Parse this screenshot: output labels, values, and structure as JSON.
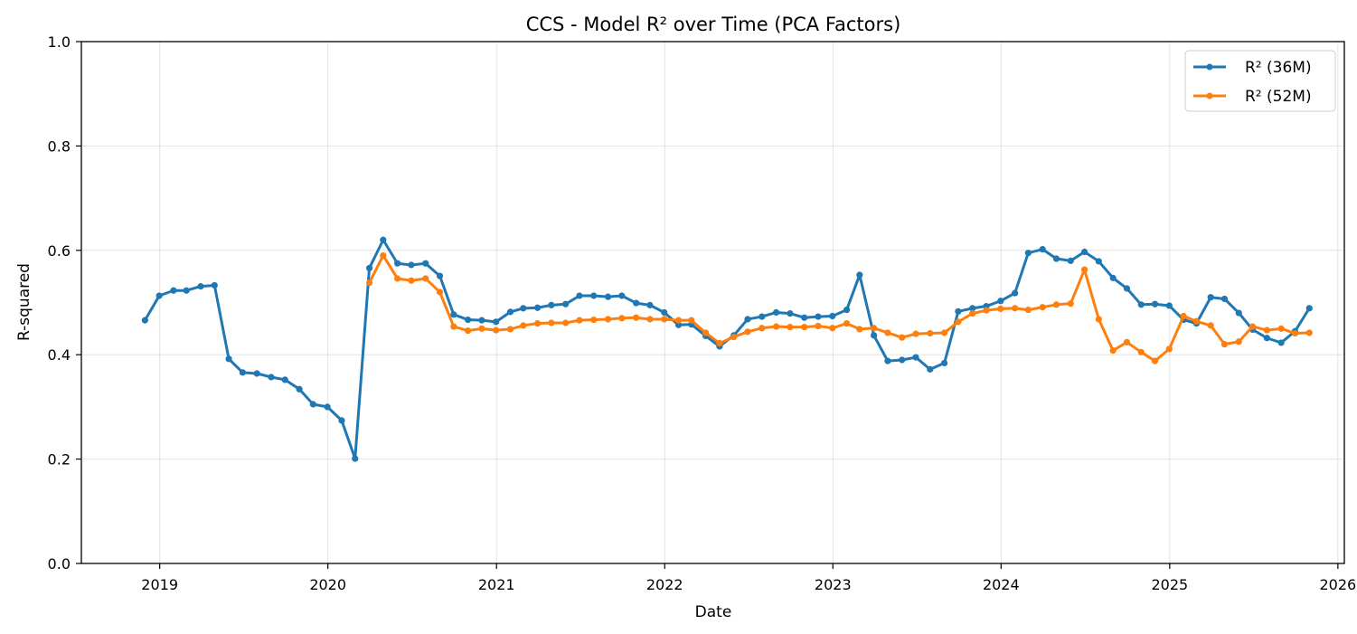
{
  "chart_data": {
    "type": "line",
    "title": "CCS - Model R² over Time (PCA Factors)",
    "xlabel": "Date",
    "ylabel": "R-squared",
    "ylim": [
      0.0,
      1.0
    ],
    "xlim": [
      "2018-07-15",
      "2026-01-15"
    ],
    "x_ticks": [
      "2019",
      "2020",
      "2021",
      "2022",
      "2023",
      "2024",
      "2025",
      "2026"
    ],
    "y_ticks": [
      "0.0",
      "0.2",
      "0.4",
      "0.6",
      "0.8",
      "1.0"
    ],
    "grid": true,
    "legend_position": "top-right",
    "series": [
      {
        "name": "R² (36M)",
        "color": "#1f77b4",
        "points": [
          [
            "2018-11-30",
            0.466
          ],
          [
            "2018-12-31",
            0.513
          ],
          [
            "2019-01-31",
            0.523
          ],
          [
            "2019-02-28",
            0.523
          ],
          [
            "2019-03-31",
            0.531
          ],
          [
            "2019-04-30",
            0.533
          ],
          [
            "2019-05-31",
            0.392
          ],
          [
            "2019-06-30",
            0.366
          ],
          [
            "2019-07-31",
            0.364
          ],
          [
            "2019-08-31",
            0.357
          ],
          [
            "2019-09-30",
            0.352
          ],
          [
            "2019-10-31",
            0.334
          ],
          [
            "2019-11-30",
            0.305
          ],
          [
            "2019-12-31",
            0.3
          ],
          [
            "2020-01-31",
            0.274
          ],
          [
            "2020-02-29",
            0.201
          ],
          [
            "2020-03-31",
            0.566
          ],
          [
            "2020-04-30",
            0.62
          ],
          [
            "2020-05-31",
            0.575
          ],
          [
            "2020-06-30",
            0.572
          ],
          [
            "2020-07-31",
            0.575
          ],
          [
            "2020-08-31",
            0.551
          ],
          [
            "2020-09-30",
            0.477
          ],
          [
            "2020-10-31",
            0.467
          ],
          [
            "2020-11-30",
            0.466
          ],
          [
            "2020-12-31",
            0.463
          ],
          [
            "2021-01-31",
            0.482
          ],
          [
            "2021-02-28",
            0.489
          ],
          [
            "2021-03-31",
            0.49
          ],
          [
            "2021-04-30",
            0.495
          ],
          [
            "2021-05-31",
            0.497
          ],
          [
            "2021-06-30",
            0.513
          ],
          [
            "2021-07-31",
            0.513
          ],
          [
            "2021-08-31",
            0.511
          ],
          [
            "2021-09-30",
            0.513
          ],
          [
            "2021-10-31",
            0.499
          ],
          [
            "2021-11-30",
            0.495
          ],
          [
            "2021-12-31",
            0.481
          ],
          [
            "2022-01-31",
            0.457
          ],
          [
            "2022-02-28",
            0.458
          ],
          [
            "2022-03-31",
            0.436
          ],
          [
            "2022-04-30",
            0.416
          ],
          [
            "2022-05-31",
            0.437
          ],
          [
            "2022-06-30",
            0.468
          ],
          [
            "2022-07-31",
            0.473
          ],
          [
            "2022-08-31",
            0.481
          ],
          [
            "2022-09-30",
            0.479
          ],
          [
            "2022-10-31",
            0.471
          ],
          [
            "2022-11-30",
            0.473
          ],
          [
            "2022-12-31",
            0.474
          ],
          [
            "2023-01-31",
            0.486
          ],
          [
            "2023-02-28",
            0.553
          ],
          [
            "2023-03-31",
            0.437
          ],
          [
            "2023-04-30",
            0.388
          ],
          [
            "2023-05-31",
            0.39
          ],
          [
            "2023-06-30",
            0.395
          ],
          [
            "2023-07-31",
            0.372
          ],
          [
            "2023-08-31",
            0.384
          ],
          [
            "2023-09-30",
            0.483
          ],
          [
            "2023-10-31",
            0.489
          ],
          [
            "2023-11-30",
            0.493
          ],
          [
            "2023-12-31",
            0.503
          ],
          [
            "2024-01-31",
            0.518
          ],
          [
            "2024-02-29",
            0.595
          ],
          [
            "2024-03-31",
            0.602
          ],
          [
            "2024-04-30",
            0.584
          ],
          [
            "2024-05-31",
            0.58
          ],
          [
            "2024-06-30",
            0.597
          ],
          [
            "2024-07-31",
            0.579
          ],
          [
            "2024-08-31",
            0.547
          ],
          [
            "2024-09-30",
            0.527
          ],
          [
            "2024-10-31",
            0.496
          ],
          [
            "2024-11-30",
            0.497
          ],
          [
            "2024-12-31",
            0.494
          ],
          [
            "2025-01-31",
            0.467
          ],
          [
            "2025-02-28",
            0.46
          ],
          [
            "2025-03-31",
            0.51
          ],
          [
            "2025-04-30",
            0.507
          ],
          [
            "2025-05-31",
            0.48
          ],
          [
            "2025-06-30",
            0.448
          ],
          [
            "2025-07-31",
            0.432
          ],
          [
            "2025-08-31",
            0.423
          ],
          [
            "2025-09-30",
            0.445
          ],
          [
            "2025-10-31",
            0.489
          ]
        ]
      },
      {
        "name": "R² (52M)",
        "color": "#ff7f0e",
        "points": [
          [
            "2020-03-31",
            0.538
          ],
          [
            "2020-04-30",
            0.59
          ],
          [
            "2020-05-31",
            0.546
          ],
          [
            "2020-06-30",
            0.542
          ],
          [
            "2020-07-31",
            0.546
          ],
          [
            "2020-08-31",
            0.52
          ],
          [
            "2020-09-30",
            0.454
          ],
          [
            "2020-10-31",
            0.446
          ],
          [
            "2020-11-30",
            0.45
          ],
          [
            "2020-12-31",
            0.447
          ],
          [
            "2021-01-31",
            0.449
          ],
          [
            "2021-02-28",
            0.456
          ],
          [
            "2021-03-31",
            0.46
          ],
          [
            "2021-04-30",
            0.461
          ],
          [
            "2021-05-31",
            0.461
          ],
          [
            "2021-06-30",
            0.466
          ],
          [
            "2021-07-31",
            0.467
          ],
          [
            "2021-08-31",
            0.468
          ],
          [
            "2021-09-30",
            0.47
          ],
          [
            "2021-10-31",
            0.471
          ],
          [
            "2021-11-30",
            0.468
          ],
          [
            "2021-12-31",
            0.468
          ],
          [
            "2022-01-31",
            0.466
          ],
          [
            "2022-02-28",
            0.466
          ],
          [
            "2022-03-31",
            0.442
          ],
          [
            "2022-04-30",
            0.422
          ],
          [
            "2022-05-31",
            0.434
          ],
          [
            "2022-06-30",
            0.444
          ],
          [
            "2022-07-31",
            0.451
          ],
          [
            "2022-08-31",
            0.454
          ],
          [
            "2022-09-30",
            0.453
          ],
          [
            "2022-10-31",
            0.453
          ],
          [
            "2022-11-30",
            0.455
          ],
          [
            "2022-12-31",
            0.451
          ],
          [
            "2023-01-31",
            0.46
          ],
          [
            "2023-02-28",
            0.449
          ],
          [
            "2023-03-31",
            0.451
          ],
          [
            "2023-04-30",
            0.442
          ],
          [
            "2023-05-31",
            0.433
          ],
          [
            "2023-06-30",
            0.44
          ],
          [
            "2023-07-31",
            0.441
          ],
          [
            "2023-08-31",
            0.442
          ],
          [
            "2023-09-30",
            0.463
          ],
          [
            "2023-10-31",
            0.479
          ],
          [
            "2023-11-30",
            0.485
          ],
          [
            "2023-12-31",
            0.488
          ],
          [
            "2024-01-31",
            0.489
          ],
          [
            "2024-02-29",
            0.486
          ],
          [
            "2024-03-31",
            0.491
          ],
          [
            "2024-04-30",
            0.496
          ],
          [
            "2024-05-31",
            0.498
          ],
          [
            "2024-06-30",
            0.563
          ],
          [
            "2024-07-31",
            0.468
          ],
          [
            "2024-08-31",
            0.408
          ],
          [
            "2024-09-30",
            0.424
          ],
          [
            "2024-10-31",
            0.405
          ],
          [
            "2024-11-30",
            0.388
          ],
          [
            "2024-12-31",
            0.411
          ],
          [
            "2025-01-31",
            0.474
          ],
          [
            "2025-02-28",
            0.464
          ],
          [
            "2025-03-31",
            0.456
          ],
          [
            "2025-04-30",
            0.42
          ],
          [
            "2025-05-31",
            0.425
          ],
          [
            "2025-06-30",
            0.454
          ],
          [
            "2025-07-31",
            0.447
          ],
          [
            "2025-08-31",
            0.45
          ],
          [
            "2025-09-30",
            0.441
          ],
          [
            "2025-10-31",
            0.442
          ]
        ]
      }
    ]
  }
}
